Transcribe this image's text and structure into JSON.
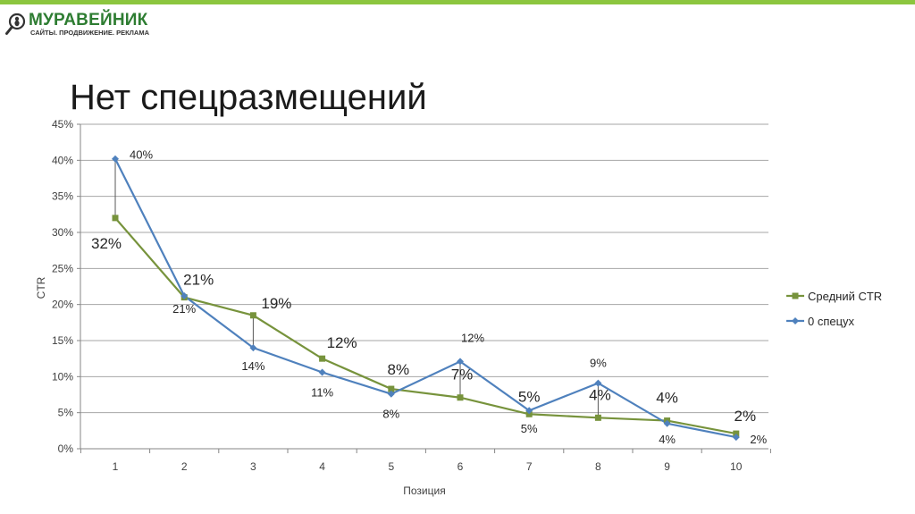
{
  "logo": {
    "name": "МУРАВЕЙНИК",
    "tagline": "САЙТЫ. ПРОДВИЖЕНИЕ. РЕКЛАМА",
    "icon": "ant-magnifier-icon"
  },
  "slide": {
    "title": "Нет спецразмещений"
  },
  "colors": {
    "accent_bar": "#8cc63f",
    "series_avg": "#77933c",
    "series_zero": "#4f81bd",
    "grid": "#a6a6a6"
  },
  "chart_data": {
    "type": "line",
    "xlabel": "Позиция",
    "ylabel": "CTR",
    "x": [
      1,
      2,
      3,
      4,
      5,
      6,
      7,
      8,
      9,
      10
    ],
    "ylim": [
      0,
      45
    ],
    "y_ticks": [
      "0%",
      "5%",
      "10%",
      "15%",
      "20%",
      "25%",
      "30%",
      "35%",
      "40%",
      "45%"
    ],
    "grid": "horizontal",
    "legend_position": "right",
    "series": [
      {
        "name": "Средний CTR",
        "marker": "square",
        "color": "#77933c",
        "values": [
          32,
          21,
          18.5,
          12.5,
          8.3,
          7.1,
          4.8,
          4.3,
          3.9,
          2.1
        ],
        "labels": [
          "32%",
          "21%",
          "19%",
          "12%",
          "8%",
          "7%",
          "5%",
          "4%",
          "4%",
          "2%"
        ]
      },
      {
        "name": "0 спецух",
        "marker": "diamond",
        "color": "#4f81bd",
        "values": [
          40.2,
          21.2,
          14,
          10.6,
          7.6,
          12.1,
          5.3,
          9.1,
          3.5,
          1.6
        ],
        "labels": [
          "40%",
          "21%",
          "14%",
          "11%",
          "8%",
          "12%",
          "5%",
          "9%",
          "4%",
          "2%"
        ]
      }
    ]
  }
}
